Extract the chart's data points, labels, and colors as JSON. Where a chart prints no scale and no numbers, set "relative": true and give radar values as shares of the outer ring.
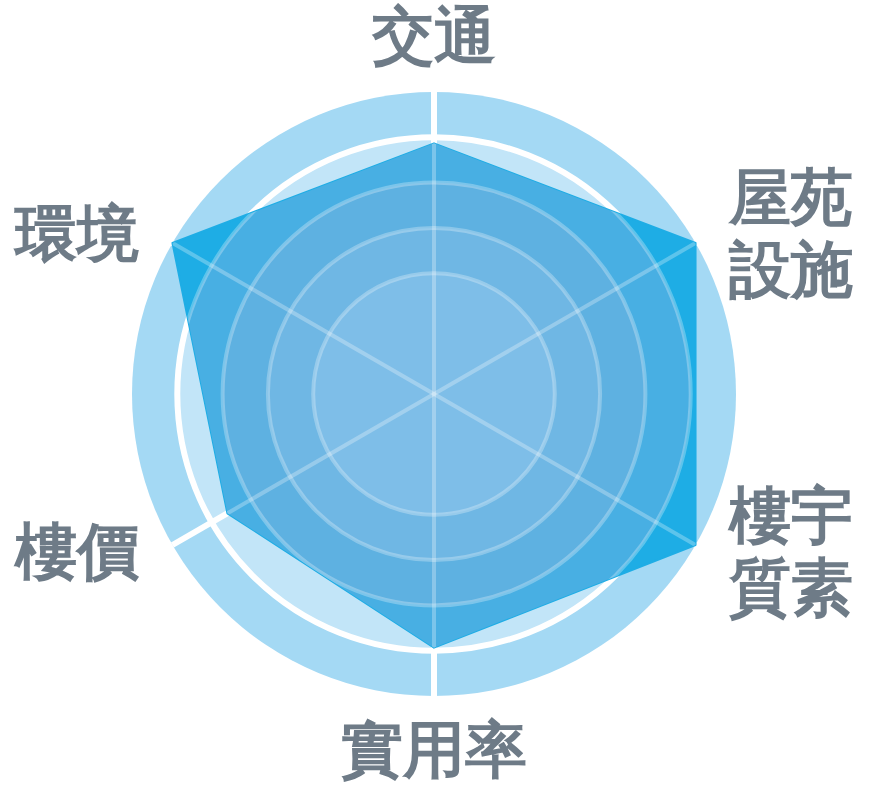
{
  "chart_data": {
    "type": "radar",
    "relative": true,
    "categories": [
      "交通",
      "屋苑設施",
      "樓宇質素",
      "實用率",
      "樓價",
      "環境"
    ],
    "series": [
      {
        "color": "#1eade5",
        "values": [
          0.83,
          1,
          1,
          0.84,
          0.79,
          1
        ]
      }
    ]
  }
}
